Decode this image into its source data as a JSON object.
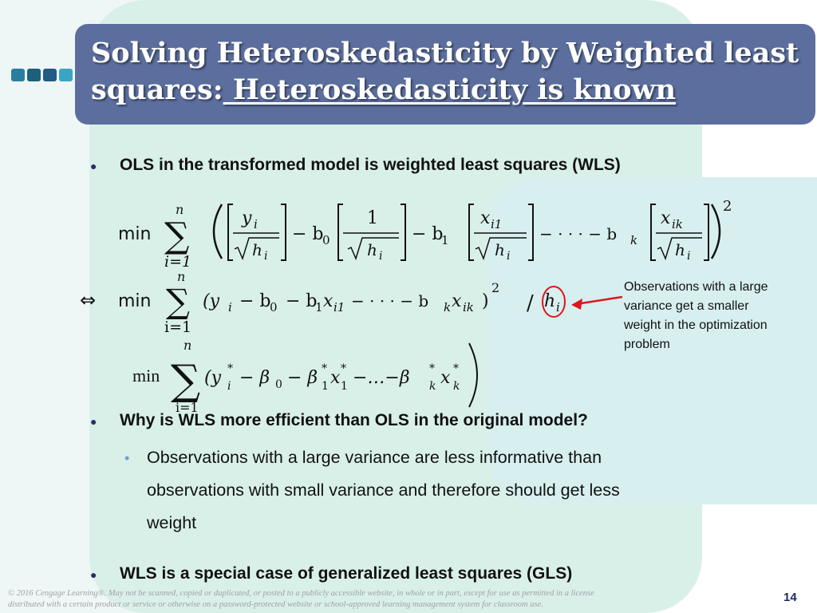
{
  "title": {
    "line1": "Solving Heteroskedasticity by Weighted least",
    "line2_prefix": "squares:",
    "line2_underlined": " Heteroskedasticity is known"
  },
  "bullets": {
    "b1": "OLS in the transformed model is weighted least squares (WLS)",
    "b2": "Why is WLS more efficient than OLS in the original model?",
    "b3": "WLS is a special case of generalized least squares (GLS)"
  },
  "sub_bullet": {
    "line1": "Observations with a large variance are less informative than",
    "line2": "observations with small variance and therefore should get less",
    "line3": "weight"
  },
  "annotation": {
    "line1": "Observations with a large",
    "line2": "variance get a smaller",
    "line3": "weight in the optimization",
    "line4": "problem"
  },
  "equations": {
    "eq1": {
      "min": "min",
      "upper": "n",
      "lower": "i=1",
      "t1_num": "y",
      "t1_num_sub": "i",
      "minus_b0": "− b",
      "b0_sub": "0",
      "t2_num": "1",
      "minus_b1": "− b",
      "b1_sub": "1",
      "t3_num": "x",
      "t3_num_sub": "i1",
      "dots": "− · · · − b",
      "bk_sub": "k",
      "t4_num": "x",
      "t4_num_sub": "ik",
      "h": "h",
      "h_sub": "i",
      "power": "2"
    },
    "eq2": {
      "equiv": "⇔",
      "min": "min",
      "upper": "n",
      "lower": "i=1",
      "body": "(y",
      "body_sub_i": "i",
      "mid": "− b",
      "sub0": "0",
      "mid2": "− b",
      "sub1": "1",
      "x1": "x",
      "sub_i1": "i1",
      "dots": "− · · · − b",
      "subk": "k",
      "xk": "x",
      "sub_ik": "ik",
      "close": ")",
      "power": "2",
      "slash": "/",
      "h": "h",
      "h_sub": "i"
    },
    "eq3": {
      "min": "min",
      "upper": "n",
      "lower": "i=1",
      "body": "(y",
      "y_sup": "*",
      "y_sub": "i",
      "beta0": "− β",
      "beta0_sub": "0",
      "beta1": "− β",
      "beta1_sup": "*",
      "beta1_sub": "1",
      "x1": "x",
      "x1_sup": "*",
      "x1_sub": "1",
      "dots": "−…−β",
      "betak_sup": "*",
      "betak_sub": "k",
      "xk": "x",
      "xk_sup": "*",
      "xk_sub": "k",
      "close": ")"
    }
  },
  "footer": {
    "line1": "© 2016 Cengage Learning®. May not be scanned, copied or duplicated, or posted to a publicly accessible website, in whole or in part, except for use as permitted in a license",
    "line2": "distributed with a certain product or service or otherwise on a password-protected website or school-approved learning management system for classroom use."
  },
  "page_number": "14",
  "colors": {
    "title_bg": "#5b6e9d",
    "annotation_red": "#e0141e",
    "squares": [
      "#2a7fa0",
      "#1e5f7e",
      "#245a84",
      "#3aa6c4",
      "#8fd6e6"
    ]
  }
}
